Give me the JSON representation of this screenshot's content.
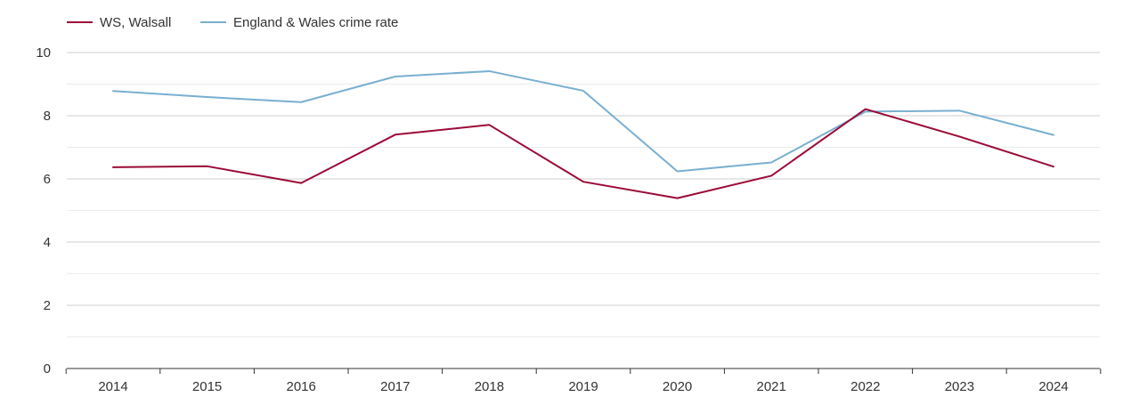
{
  "chart_data": {
    "type": "line",
    "title": "",
    "xlabel": "",
    "ylabel": "",
    "categories": [
      "2014",
      "2015",
      "2016",
      "2017",
      "2018",
      "2019",
      "2020",
      "2021",
      "2022",
      "2023",
      "2024"
    ],
    "ylim": [
      0,
      10
    ],
    "yticks": [
      0,
      2,
      4,
      6,
      8,
      10
    ],
    "grid": true,
    "legend_position": "top-left",
    "series": [
      {
        "name": "WS, Walsall",
        "color": "#9b0b37",
        "values": [
          6.37,
          6.4,
          5.87,
          7.4,
          7.71,
          5.91,
          5.39,
          6.1,
          8.21,
          7.34,
          6.39
        ]
      },
      {
        "name": "England & Wales crime rate",
        "color": "#79afd0",
        "values": [
          8.78,
          8.59,
          8.43,
          9.24,
          9.41,
          8.79,
          6.24,
          6.52,
          8.13,
          8.16,
          7.39
        ]
      }
    ]
  }
}
